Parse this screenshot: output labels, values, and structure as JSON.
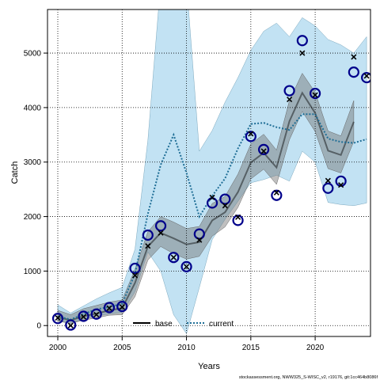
{
  "chart_data": {
    "type": "line",
    "xlabel": "Years",
    "ylabel": "Catch",
    "xlim": [
      1999.2,
      2024.3
    ],
    "ylim": [
      -200,
      5800
    ],
    "xticks": [
      2000,
      2005,
      2010,
      2015,
      2020
    ],
    "yticks": [
      0,
      1000,
      2000,
      3000,
      4000,
      5000
    ],
    "grid": true,
    "legend_placement": "bottom-center",
    "footer": "stockassessment.org, NWW325_S-WISC_v2, r19176, git:1cc464b8086f",
    "series": [
      {
        "name": "base",
        "style": "solid",
        "color": "#000000",
        "x": [
          2000,
          2001,
          2002,
          2003,
          2004,
          2005,
          2006,
          2007,
          2008,
          2009,
          2010,
          2011,
          2012,
          2013,
          2014,
          2015,
          2016,
          2017,
          2018,
          2019,
          2020,
          2021,
          2022,
          2023
        ],
        "values": [
          150,
          100,
          170,
          220,
          280,
          320,
          780,
          1450,
          1700,
          1600,
          1490,
          1530,
          1930,
          2080,
          2450,
          2990,
          3170,
          2900,
          3750,
          4270,
          3900,
          3210,
          3130,
          3740
        ],
        "band_lower": [
          80,
          40,
          100,
          140,
          190,
          200,
          530,
          1200,
          1450,
          1320,
          1220,
          1270,
          1640,
          1810,
          2170,
          2690,
          2870,
          2590,
          3410,
          3930,
          3560,
          2880,
          2800,
          3380
        ],
        "band_upper": [
          280,
          200,
          310,
          370,
          430,
          470,
          1030,
          1720,
          2000,
          1900,
          1780,
          1820,
          2240,
          2370,
          2780,
          3330,
          3510,
          3220,
          4130,
          4630,
          4280,
          3570,
          3480,
          4130
        ]
      },
      {
        "name": "current",
        "style": "dotted",
        "color": "#1f6e96",
        "x": [
          2000,
          2001,
          2002,
          2003,
          2004,
          2005,
          2006,
          2007,
          2008,
          2009,
          2010,
          2011,
          2012,
          2013,
          2014,
          2015,
          2016,
          2017,
          2018,
          2019,
          2020,
          2021,
          2022,
          2023,
          2024
        ],
        "values": [
          170,
          110,
          210,
          300,
          340,
          400,
          950,
          2050,
          2950,
          3500,
          2800,
          2000,
          2380,
          2700,
          3250,
          3700,
          3720,
          3640,
          3590,
          3880,
          3880,
          3430,
          3370,
          3350,
          3420
        ],
        "band_lower": [
          90,
          40,
          120,
          180,
          210,
          240,
          620,
          1350,
          1000,
          200,
          -150,
          700,
          1580,
          1950,
          2280,
          2620,
          2680,
          2760,
          2650,
          3200,
          3000,
          2260,
          2220,
          2200,
          2250
        ],
        "band_upper": [
          380,
          230,
          360,
          490,
          600,
          700,
          1400,
          3400,
          6300,
          7000,
          6300,
          3200,
          3580,
          4100,
          4550,
          5050,
          5400,
          5550,
          5300,
          5650,
          5500,
          5250,
          5150,
          5000,
          5300
        ]
      },
      {
        "name": "observed (x)",
        "style": "marker-x",
        "color": "#000000",
        "x": [
          2000,
          2001,
          2002,
          2003,
          2004,
          2005,
          2006,
          2007,
          2008,
          2009,
          2010,
          2011,
          2012,
          2013,
          2014,
          2015,
          2016,
          2017,
          2018,
          2019,
          2020,
          2021,
          2022,
          2023,
          2024
        ],
        "values": [
          140,
          0,
          160,
          200,
          320,
          340,
          920,
          1460,
          1700,
          1250,
          1080,
          1570,
          2350,
          2200,
          1990,
          3520,
          3200,
          2440,
          4150,
          5000,
          4230,
          2660,
          2580,
          4930,
          4580
        ]
      },
      {
        "name": "observed (o)",
        "style": "marker-circle",
        "color": "#00008b",
        "x": [
          2000,
          2001,
          2002,
          2003,
          2004,
          2005,
          2006,
          2007,
          2008,
          2009,
          2010,
          2011,
          2012,
          2013,
          2014,
          2015,
          2016,
          2017,
          2018,
          2019,
          2020,
          2021,
          2022,
          2023,
          2024
        ],
        "values": [
          130,
          10,
          170,
          210,
          330,
          350,
          1050,
          1660,
          1830,
          1250,
          1080,
          1680,
          2250,
          2320,
          1930,
          3470,
          3230,
          2390,
          4310,
          5230,
          4260,
          2520,
          2650,
          4650,
          4550
        ]
      }
    ]
  },
  "colors": {
    "current_band": "#8fcbea",
    "base_band": "#707070",
    "current_line": "#1f6e96",
    "base_line": "#000000",
    "circle_marker": "#00008b",
    "grid": "#000000"
  }
}
